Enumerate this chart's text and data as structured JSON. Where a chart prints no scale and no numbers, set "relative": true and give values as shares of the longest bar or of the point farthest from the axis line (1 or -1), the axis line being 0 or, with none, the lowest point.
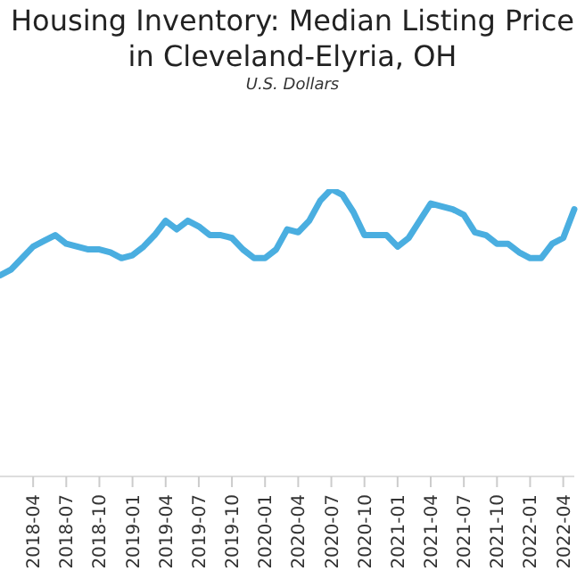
{
  "chart_data": {
    "type": "line",
    "title": "Housing Inventory: Median Listing Price in Cleveland-Elyria, OH",
    "subtitle": "U.S. Dollars",
    "relative": true,
    "grid": false,
    "legend": false,
    "marker": "none",
    "line_style": "solid",
    "categories": [
      null,
      null,
      null,
      "2018-04",
      null,
      null,
      "2018-07",
      null,
      null,
      "2018-10",
      null,
      null,
      "2019-01",
      null,
      null,
      "2019-04",
      null,
      null,
      "2019-07",
      null,
      null,
      "2019-10",
      null,
      null,
      "2020-01",
      null,
      null,
      "2020-04",
      null,
      null,
      "2020-07",
      null,
      null,
      "2020-10",
      null,
      null,
      "2021-01",
      null,
      null,
      "2021-04",
      null,
      null,
      "2021-07",
      null,
      null,
      "2021-10",
      null,
      null,
      "2022-01",
      null,
      null,
      "2022-04",
      null
    ],
    "series": [
      {
        "color": "#4aaee0",
        "values": [
          0.7,
          0.72,
          0.76,
          0.8,
          0.82,
          0.84,
          0.81,
          0.8,
          0.79,
          0.79,
          0.78,
          0.76,
          0.77,
          0.8,
          0.84,
          0.89,
          0.86,
          0.89,
          0.87,
          0.84,
          0.84,
          0.83,
          0.79,
          0.76,
          0.76,
          0.79,
          0.86,
          0.85,
          0.89,
          0.96,
          1,
          0.98,
          0.92,
          0.84,
          0.84,
          0.84,
          0.8,
          0.83,
          0.89,
          0.95,
          0.94,
          0.93,
          0.91,
          0.85,
          0.84,
          0.81,
          0.81,
          0.78,
          0.76,
          0.76,
          0.81,
          0.83,
          0.93
        ]
      }
    ]
  }
}
